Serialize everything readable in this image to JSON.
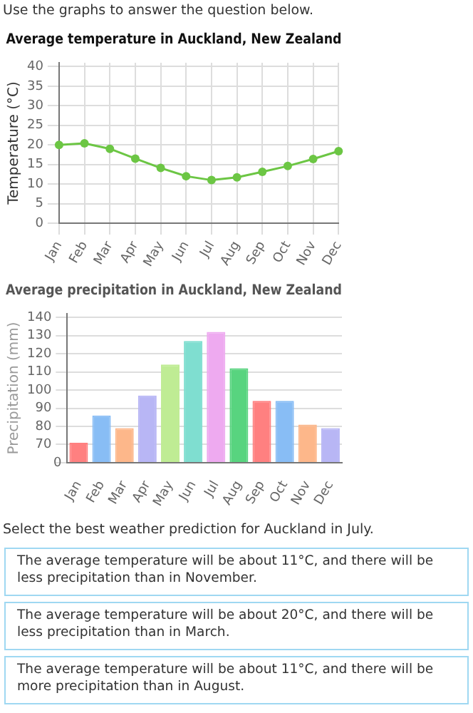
{
  "chart_data": [
    {
      "type": "line",
      "title": "Average temperature in Auckland, New Zealand",
      "ylabel": "Temperature (°C)",
      "categories": [
        "Jan",
        "Feb",
        "Mar",
        "Apr",
        "May",
        "Jun",
        "Jul",
        "Aug",
        "Sep",
        "Oct",
        "Nov",
        "Dec"
      ],
      "values": [
        20,
        20.4,
        19,
        16.5,
        14.1,
        12,
        11,
        11.7,
        13.1,
        14.6,
        16.4,
        18.4
      ],
      "color": "#6cc644",
      "marker": "circle",
      "line_style": "solid",
      "ylim": [
        0,
        41
      ],
      "yticks": [
        0,
        5,
        10,
        15,
        20,
        25,
        30,
        35,
        40
      ],
      "grid": true,
      "annotations": [
        "Use the graphs to answer the question below."
      ]
    },
    {
      "type": "bar",
      "title": "Average precipitation in Auckland, New Zealand",
      "ylabel": "Precipitation (mm)",
      "categories": [
        "Jan",
        "Feb",
        "Mar",
        "Apr",
        "May",
        "Jun",
        "Jul",
        "Aug",
        "Sep",
        "Oct",
        "Nov",
        "Dec"
      ],
      "values": [
        71,
        86,
        79,
        97,
        114,
        127,
        132,
        112,
        94,
        94,
        81,
        79
      ],
      "colors": [
        "#ff8080",
        "#88bdf5",
        "#fdb78a",
        "#b8b6f5",
        "#bfec94",
        "#7fded0",
        "#eeaaf0",
        "#58d47f",
        "#ff8080",
        "#88bdf5",
        "#fdb78a",
        "#b8b6f5"
      ],
      "ylim": [
        60,
        142
      ],
      "yticks": [
        {
          "value": 60,
          "label": null
        },
        70,
        80,
        90,
        100,
        110,
        120,
        130,
        140
      ],
      "grid": "y",
      "annotations": [
        "0",
        "Select the best weather prediction for Auckland in July.",
        "The average temperature will be about 11°C, and there will be less precipitation than in November.",
        "The average temperature will be about 20°C, and there will be less precipitation than in March.",
        "The average temperature will be about 11°C, and there will be more precipitation than in August."
      ]
    }
  ]
}
